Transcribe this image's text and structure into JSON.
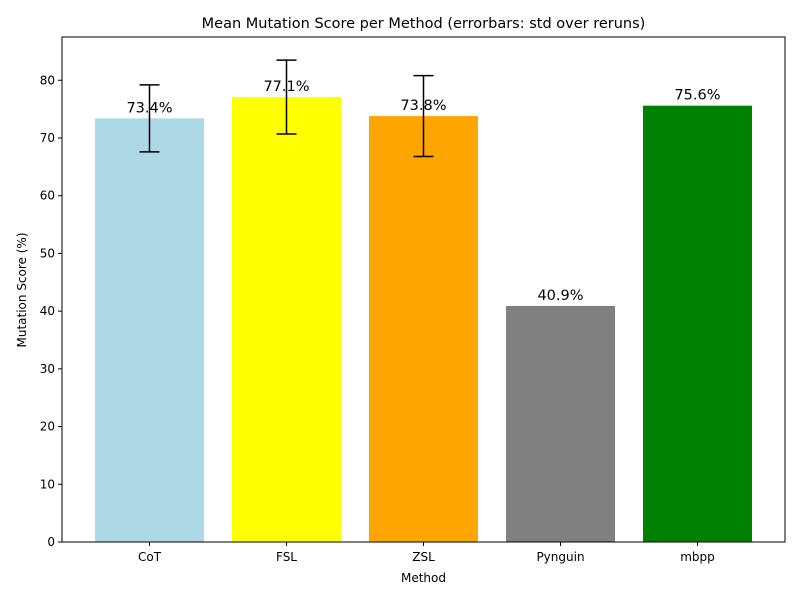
{
  "chart_data": {
    "type": "bar",
    "title": "Mean Mutation Score per Method (errorbars: std over reruns)",
    "xlabel": "Method",
    "ylabel": "Mutation Score (%)",
    "ylim": [
      0,
      87.5
    ],
    "yticks": [
      0,
      10,
      20,
      30,
      40,
      50,
      60,
      70,
      80
    ],
    "ytick_labels": [
      "0",
      "10",
      "20",
      "30",
      "40",
      "50",
      "60",
      "70",
      "80"
    ],
    "grid": false,
    "legend": "none",
    "categories": [
      "CoT",
      "FSL",
      "ZSL",
      "Pynguin",
      "mbpp"
    ],
    "values": [
      73.4,
      77.1,
      73.8,
      40.9,
      75.6
    ],
    "errors": [
      5.8,
      6.4,
      7.0,
      null,
      null
    ],
    "data_labels": [
      "73.4%",
      "77.1%",
      "73.8%",
      "40.9%",
      "75.6%"
    ],
    "colors": [
      "#add8e6",
      "#ffff00",
      "#ffa500",
      "#808080",
      "#008000"
    ]
  }
}
